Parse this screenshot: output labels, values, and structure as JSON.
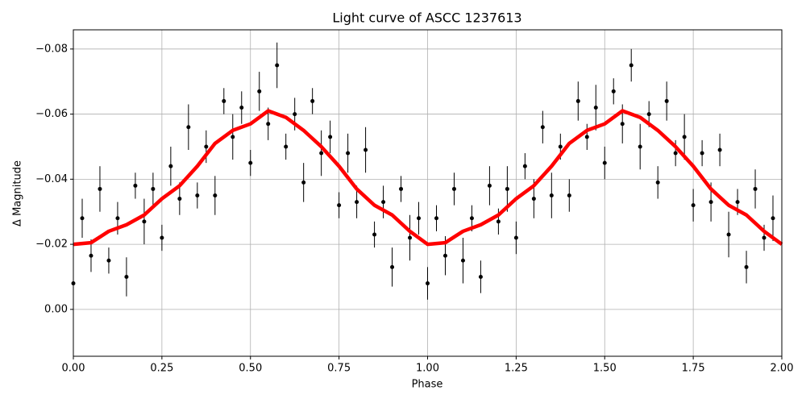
{
  "chart_data": {
    "type": "scatter",
    "title": "Light curve of ASCC 1237613",
    "x_label": "Phase",
    "y_label": "Δ Magnitude",
    "xlim": [
      0,
      2
    ],
    "ylim": [
      0.0144,
      -0.0859
    ],
    "xticks": [
      {
        "value": 0,
        "label": "0.00"
      },
      {
        "value": 0.25,
        "label": "0.25"
      },
      {
        "value": 0.5,
        "label": "0.50"
      },
      {
        "value": 0.75,
        "label": "0.75"
      },
      {
        "value": 1,
        "label": "1.00"
      },
      {
        "value": 1.25,
        "label": "1.25"
      },
      {
        "value": 1.5,
        "label": "1.50"
      },
      {
        "value": 1.75,
        "label": "1.75"
      },
      {
        "value": 2,
        "label": "2.00"
      }
    ],
    "yticks": [
      {
        "value": -0.08,
        "label": "−0.08"
      },
      {
        "value": -0.06,
        "label": "−0.06"
      },
      {
        "value": -0.04,
        "label": "−0.04"
      },
      {
        "value": -0.02,
        "label": "−0.02"
      },
      {
        "value": 0,
        "label": "0.00"
      }
    ],
    "grid": true,
    "points": {
      "color": "#000000",
      "x": [
        0,
        0.025,
        0.05,
        0.075,
        0.1,
        0.125,
        0.15,
        0.175,
        0.2,
        0.225,
        0.25,
        0.275,
        0.3,
        0.325,
        0.35,
        0.375,
        0.4,
        0.425,
        0.45,
        0.475,
        0.5,
        0.525,
        0.55,
        0.575,
        0.6,
        0.625,
        0.65,
        0.675,
        0.7,
        0.725,
        0.75,
        0.775,
        0.8,
        0.825,
        0.85,
        0.875,
        0.9,
        0.925,
        0.95,
        0.975,
        1,
        1.025,
        1.05,
        1.075,
        1.1,
        1.125,
        1.15,
        1.175,
        1.2,
        1.225,
        1.25,
        1.275,
        1.3,
        1.325,
        1.35,
        1.375,
        1.4,
        1.425,
        1.45,
        1.475,
        1.5,
        1.525,
        1.55,
        1.575,
        1.6,
        1.625,
        1.65,
        1.675,
        1.7,
        1.725,
        1.75,
        1.775,
        1.8,
        1.825,
        1.85,
        1.875,
        1.9,
        1.925,
        1.95,
        1.975
      ],
      "values": [
        -0.008,
        -0.028,
        -0.0165,
        -0.037,
        -0.015,
        -0.028,
        -0.01,
        -0.038,
        -0.027,
        -0.037,
        -0.022,
        -0.044,
        -0.034,
        -0.056,
        -0.035,
        -0.05,
        -0.035,
        -0.064,
        -0.053,
        -0.062,
        -0.045,
        -0.067,
        -0.057,
        -0.075,
        -0.05,
        -0.06,
        -0.039,
        -0.064,
        -0.048,
        -0.053,
        -0.032,
        -0.048,
        -0.033,
        -0.049,
        -0.023,
        -0.033,
        -0.013,
        -0.037,
        -0.022,
        -0.028,
        -0.008,
        -0.028,
        -0.0165,
        -0.037,
        -0.015,
        -0.028,
        -0.01,
        -0.038,
        -0.027,
        -0.037,
        -0.022,
        -0.044,
        -0.034,
        -0.056,
        -0.035,
        -0.05,
        -0.035,
        -0.064,
        -0.053,
        -0.062,
        -0.045,
        -0.067,
        -0.057,
        -0.075,
        -0.05,
        -0.06,
        -0.039,
        -0.064,
        -0.048,
        -0.053,
        -0.032,
        -0.048,
        -0.033,
        -0.049,
        -0.023,
        -0.033,
        -0.013,
        -0.037,
        -0.022,
        -0.028
      ],
      "errors": [
        0.004,
        0.006,
        0.005,
        0.007,
        0.004,
        0.005,
        0.006,
        0.004,
        0.007,
        0.005,
        0.004,
        0.006,
        0.005,
        0.007,
        0.004,
        0.005,
        0.006,
        0.004,
        0.007,
        0.005,
        0.004,
        0.006,
        0.005,
        0.007,
        0.004,
        0.005,
        0.006,
        0.004,
        0.007,
        0.005,
        0.004,
        0.006,
        0.005,
        0.007,
        0.004,
        0.005,
        0.006,
        0.004,
        0.007,
        0.005,
        0.005,
        0.004,
        0.006,
        0.005,
        0.007,
        0.004,
        0.005,
        0.006,
        0.004,
        0.007,
        0.005,
        0.004,
        0.006,
        0.005,
        0.007,
        0.004,
        0.005,
        0.006,
        0.004,
        0.007,
        0.005,
        0.004,
        0.006,
        0.005,
        0.007,
        0.004,
        0.005,
        0.006,
        0.004,
        0.007,
        0.005,
        0.004,
        0.006,
        0.005,
        0.007,
        0.004,
        0.005,
        0.006,
        0.004,
        0.007
      ]
    },
    "trend": {
      "color": "#ff0000",
      "x": [
        0,
        0.05,
        0.1,
        0.15,
        0.2,
        0.25,
        0.3,
        0.35,
        0.4,
        0.45,
        0.5,
        0.55,
        0.6,
        0.65,
        0.7,
        0.75,
        0.8,
        0.85,
        0.9,
        0.95,
        1,
        1.05,
        1.1,
        1.15,
        1.2,
        1.25,
        1.3,
        1.35,
        1.4,
        1.45,
        1.5,
        1.55,
        1.6,
        1.65,
        1.7,
        1.75,
        1.8,
        1.85,
        1.9,
        1.95,
        2
      ],
      "values": [
        -0.02,
        -0.0205,
        -0.024,
        -0.026,
        -0.029,
        -0.034,
        -0.038,
        -0.044,
        -0.051,
        -0.055,
        -0.057,
        -0.061,
        -0.059,
        -0.055,
        -0.05,
        -0.044,
        -0.037,
        -0.032,
        -0.029,
        -0.024,
        -0.02,
        -0.0205,
        -0.024,
        -0.026,
        -0.029,
        -0.034,
        -0.038,
        -0.044,
        -0.051,
        -0.055,
        -0.057,
        -0.061,
        -0.059,
        -0.055,
        -0.05,
        -0.044,
        -0.037,
        -0.032,
        -0.029,
        -0.024,
        -0.02
      ]
    }
  }
}
